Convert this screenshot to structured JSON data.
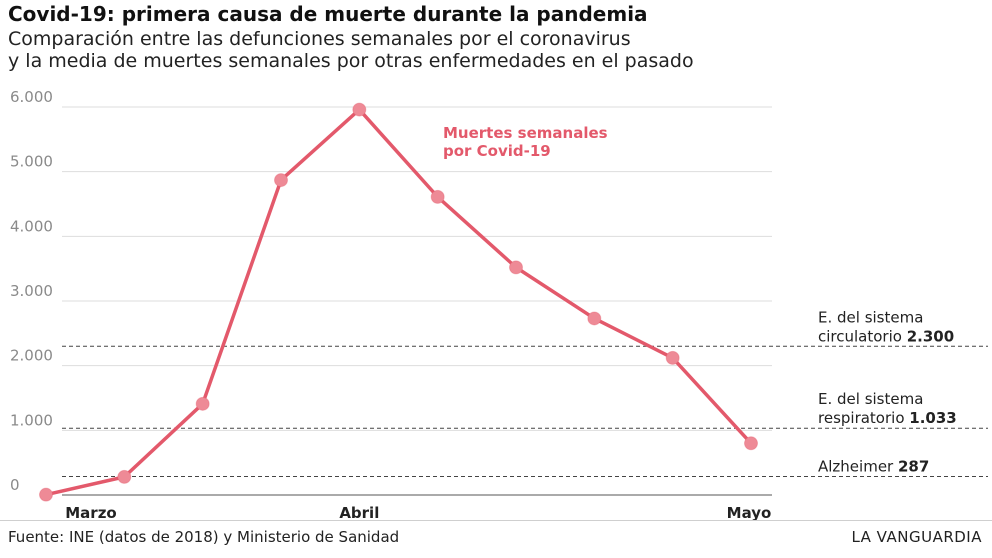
{
  "header": {
    "title": "Covid-19: primera causa de muerte durante la pandemia",
    "subtitle_line1": "Comparación entre las defunciones semanales por el coronavirus",
    "subtitle_line2": "y la media de muertes semanales por otras enfermedades en el pasado"
  },
  "footer": {
    "source": "Fuente: INE (datos de 2018) y Ministerio de Sanidad",
    "brand": "LA VANGUARDIA"
  },
  "colors": {
    "series": "#e3596b",
    "marker": "#ee8a96",
    "grid": "#dddddd",
    "reference": "#444444"
  },
  "chart_data": {
    "type": "line",
    "title": "Covid-19: primera causa de muerte durante la pandemia",
    "ylim": [
      0,
      6000
    ],
    "yticks": [
      {
        "value": 0,
        "label": "0"
      },
      {
        "value": 1000,
        "label": "1.000"
      },
      {
        "value": 2000,
        "label": "2.000"
      },
      {
        "value": 3000,
        "label": "3.000"
      },
      {
        "value": 4000,
        "label": "4.000"
      },
      {
        "value": 5000,
        "label": "5.000"
      },
      {
        "value": 6000,
        "label": "6.000"
      }
    ],
    "xticks": [
      {
        "index": 0,
        "label": "Marzo"
      },
      {
        "index": 4,
        "label": "Abril"
      },
      {
        "index": 9,
        "label": "Mayo"
      }
    ],
    "grid": true,
    "series": [
      {
        "name": "Muertes semanales por Covid-19",
        "label_lines": [
          "Muertes semanales",
          "por Covid-19"
        ],
        "values": [
          5,
          280,
          1410,
          4870,
          5960,
          4610,
          3520,
          2730,
          2120,
          800
        ]
      }
    ],
    "reference_lines": [
      {
        "label_line1": "E. del sistema",
        "label_line2": "circulatorio",
        "value_label": "2.300",
        "value": 2300
      },
      {
        "label_line1": "E. del sistema",
        "label_line2": "respiratorio",
        "value_label": "1.033",
        "value": 1033
      },
      {
        "label_line1": "",
        "label_line2": "Alzheimer",
        "value_label": "287",
        "value": 287
      }
    ]
  }
}
